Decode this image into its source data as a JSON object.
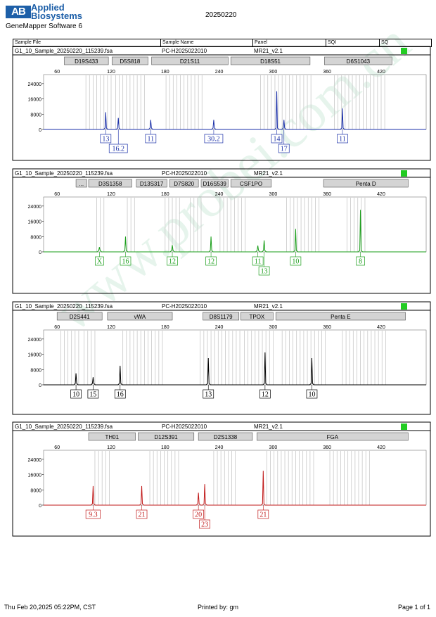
{
  "header": {
    "logo_mark": "AB",
    "brand_line1": "Applied",
    "brand_line2": "Biosystems",
    "software": "GeneMapper Software 6",
    "run_date": "20250220"
  },
  "columns": {
    "sample_file": "Sample File",
    "sample_name": "Sample Name",
    "panel": "Panel",
    "sqi": "SQI",
    "sq": "SQ"
  },
  "footer": {
    "timestamp": "Thu Feb 20,2025 05:22PM, CST",
    "printed_by": "Printed by: gm",
    "page": "Page 1 of 1"
  },
  "watermark": "www.probei.com.cn",
  "colors": {
    "blue": "#1a2fa8",
    "green": "#1a9e1a",
    "black": "#000000",
    "red": "#c01818",
    "sq_ok": "#22cc22"
  },
  "chart_data": [
    {
      "type": "line",
      "dye": "blue",
      "sample_file": "G1_10_Sample_20250220_115239.fsa",
      "sample_name": "PC-H2025022010",
      "panel": "MR21_v2.1",
      "xlim": [
        45,
        470
      ],
      "ylim": [
        0,
        28000
      ],
      "x_ticks": [
        60,
        120,
        180,
        240,
        300,
        360,
        420
      ],
      "y_ticks": [
        0,
        8000,
        16000,
        24000
      ],
      "markers": [
        {
          "name": "D19S433",
          "start": 68,
          "end": 117
        },
        {
          "name": "D5S818",
          "start": 121,
          "end": 161
        },
        {
          "name": "D21S11",
          "start": 165,
          "end": 250
        },
        {
          "name": "D18S51",
          "start": 253,
          "end": 341
        },
        {
          "name": "D6S1043",
          "start": 357,
          "end": 432
        }
      ],
      "bins": [
        [
          92,
          120
        ],
        [
          125,
          160
        ],
        [
          181,
          222
        ],
        [
          286,
          345
        ],
        [
          368,
          427
        ]
      ],
      "peaks": [
        {
          "x": 114,
          "height": 9000,
          "label": "13"
        },
        {
          "x": 128,
          "height": 6000,
          "label": "16.2"
        },
        {
          "x": 164,
          "height": 5000,
          "label": "11"
        },
        {
          "x": 234,
          "height": 5000,
          "label": "30.2"
        },
        {
          "x": 304,
          "height": 20000,
          "label": "14"
        },
        {
          "x": 312,
          "height": 5000,
          "label": "17"
        },
        {
          "x": 377,
          "height": 11000,
          "label": "11"
        }
      ]
    },
    {
      "type": "line",
      "dye": "green",
      "sample_file": "G1_10_Sample_20250220_115239.fsa",
      "sample_name": "PC-H2025022010",
      "panel": "MR21_v2.1",
      "xlim": [
        45,
        470
      ],
      "ylim": [
        0,
        28000
      ],
      "x_ticks": [
        60,
        120,
        180,
        240,
        300,
        360,
        420
      ],
      "y_ticks": [
        0,
        8000,
        16000,
        24000
      ],
      "markers": [
        {
          "name": "...",
          "start": 81,
          "end": 93
        },
        {
          "name": "D3S1358",
          "start": 95,
          "end": 143
        },
        {
          "name": "D13S317",
          "start": 148,
          "end": 182
        },
        {
          "name": "D7S820",
          "start": 185,
          "end": 217
        },
        {
          "name": "D16S539",
          "start": 220,
          "end": 250
        },
        {
          "name": "CSF1PO",
          "start": 253,
          "end": 298
        },
        {
          "name": "Penta D",
          "start": 356,
          "end": 450
        }
      ],
      "bins": [
        [
          104,
          113
        ],
        [
          138,
          148
        ],
        [
          180,
          198
        ],
        [
          208,
          222
        ],
        [
          241,
          271
        ],
        [
          315,
          352
        ],
        [
          382,
          403
        ]
      ],
      "peaks": [
        {
          "x": 107,
          "height": 2500,
          "label": "X"
        },
        {
          "x": 136,
          "height": 8000,
          "label": "16"
        },
        {
          "x": 188,
          "height": 3500,
          "label": "12"
        },
        {
          "x": 231,
          "height": 8000,
          "label": "12"
        },
        {
          "x": 283,
          "height": 3300,
          "label": "11"
        },
        {
          "x": 290,
          "height": 6000,
          "label": "13"
        },
        {
          "x": 325,
          "height": 12000,
          "label": "10"
        },
        {
          "x": 397,
          "height": 22000,
          "label": "8"
        }
      ]
    },
    {
      "type": "line",
      "dye": "black",
      "sample_file": "G1_10_Sample_20250220_115239.fsa",
      "sample_name": "PC-H2025022010",
      "panel": "MR21_v2.1",
      "xlim": [
        45,
        470
      ],
      "ylim": [
        0,
        28000
      ],
      "x_ticks": [
        60,
        120,
        180,
        240,
        300,
        360,
        420
      ],
      "y_ticks": [
        0,
        8000,
        16000,
        24000
      ],
      "markers": [
        {
          "name": "D2S441",
          "start": 60,
          "end": 110
        },
        {
          "name": "vWA",
          "start": 116,
          "end": 188
        },
        {
          "name": "D8S1179",
          "start": 222,
          "end": 262
        },
        {
          "name": "TPOX",
          "start": 264,
          "end": 300
        },
        {
          "name": "Penta E",
          "start": 303,
          "end": 447
        }
      ],
      "bins": [
        [
          64,
          87
        ],
        [
          90,
          104
        ],
        [
          133,
          177
        ],
        [
          219,
          264
        ],
        [
          268,
          300
        ],
        [
          310,
          360
        ],
        [
          377,
          426
        ]
      ],
      "peaks": [
        {
          "x": 81,
          "height": 6000,
          "label": "10"
        },
        {
          "x": 100,
          "height": 4000,
          "label": "15"
        },
        {
          "x": 130,
          "height": 10000,
          "label": "16"
        },
        {
          "x": 228,
          "height": 14000,
          "label": "13"
        },
        {
          "x": 291,
          "height": 17000,
          "label": "12"
        },
        {
          "x": 343,
          "height": 14000,
          "label": "10"
        }
      ]
    },
    {
      "type": "line",
      "dye": "red",
      "sample_file": "G1_10_Sample_20250220_115239.fsa",
      "sample_name": "PC-H2025022010",
      "panel": "MR21_v2.1",
      "xlim": [
        45,
        470
      ],
      "ylim": [
        0,
        28000
      ],
      "x_ticks": [
        60,
        120,
        180,
        240,
        300,
        360,
        420
      ],
      "y_ticks": [
        0,
        8000,
        16000,
        24000
      ],
      "markers": [
        {
          "name": "TH01",
          "start": 95,
          "end": 147
        },
        {
          "name": "D12S391",
          "start": 150,
          "end": 212
        },
        {
          "name": "D2S1338",
          "start": 217,
          "end": 277
        },
        {
          "name": "FGA",
          "start": 282,
          "end": 450
        }
      ],
      "bins": [
        [
          102,
          118
        ],
        [
          163,
          196
        ],
        [
          234,
          260
        ],
        [
          293,
          345
        ],
        [
          363,
          408
        ]
      ],
      "peaks": [
        {
          "x": 100,
          "height": 10000,
          "label": "9.3"
        },
        {
          "x": 154,
          "height": 10000,
          "label": "21"
        },
        {
          "x": 217,
          "height": 6500,
          "label": "20"
        },
        {
          "x": 224,
          "height": 11000,
          "label": "23"
        },
        {
          "x": 289,
          "height": 18000,
          "label": "21"
        }
      ]
    }
  ]
}
